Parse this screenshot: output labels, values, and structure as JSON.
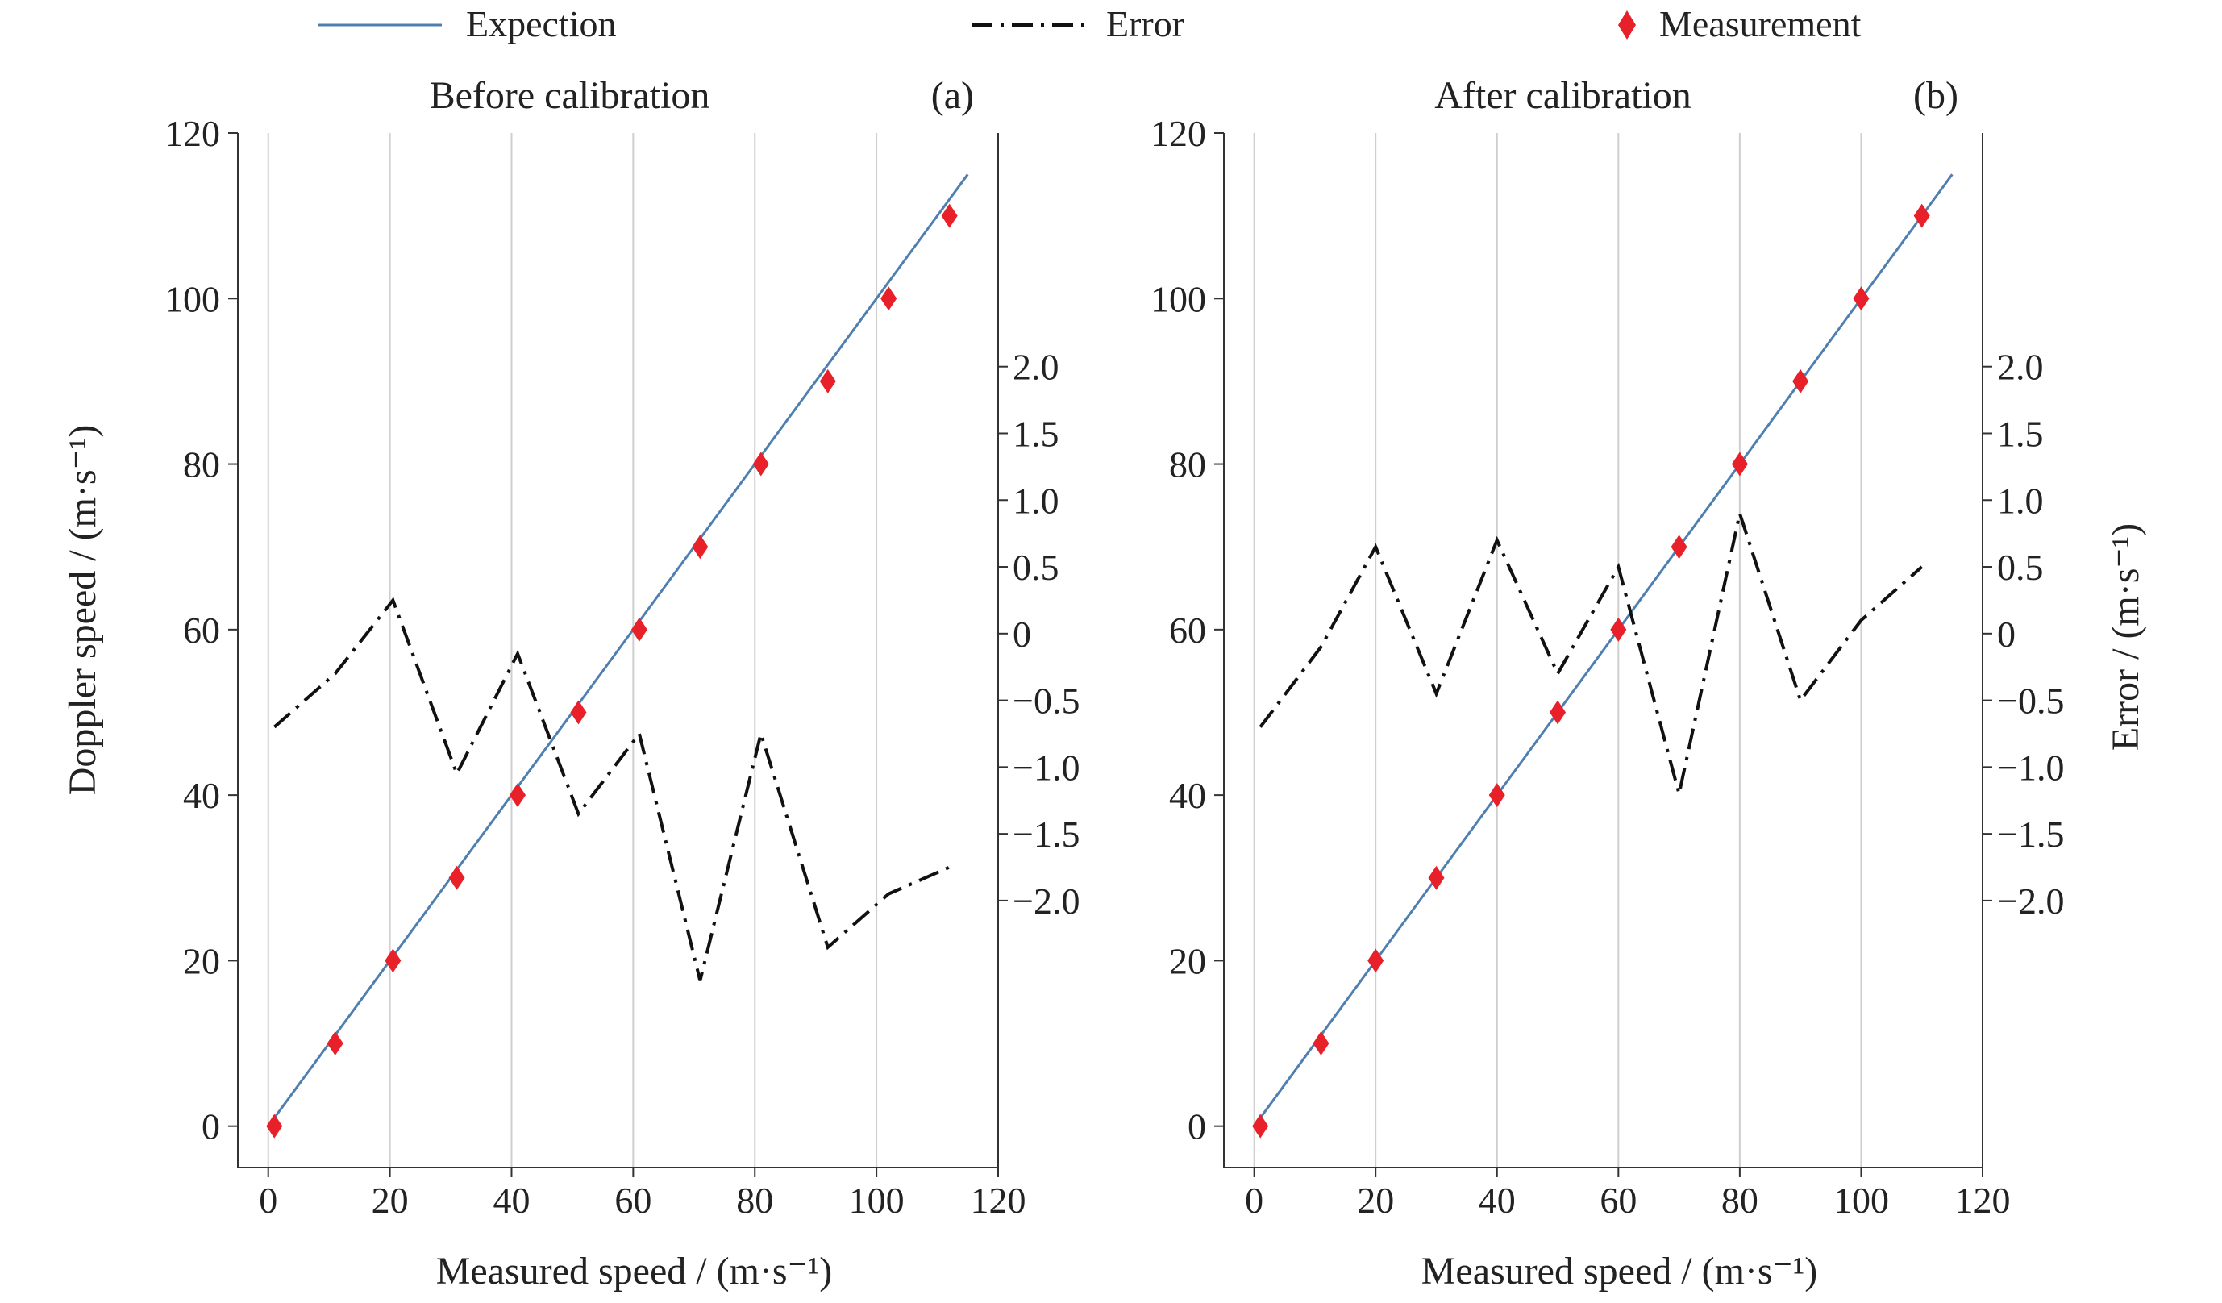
{
  "legend": {
    "expectation_label": "Expection",
    "error_label": "Error",
    "measurement_label": "Measurement"
  },
  "colors": {
    "expectation": "#4f7fb0",
    "error": "#111111",
    "measurement": "#e8202a",
    "grid": "#cfcfcf",
    "axis": "#333333"
  },
  "chart_data": [
    {
      "type": "line",
      "panel_label": "(a)",
      "title": "Before calibration",
      "xlabel": "Measured speed / (m·s⁻¹)",
      "ylabel": "Doppler speed / (m·s⁻¹)",
      "y2label": "",
      "xlim": [
        -5,
        120
      ],
      "ylim": [
        -5,
        120
      ],
      "y2lim": [
        -4.0,
        3.75
      ],
      "xticks": [
        0,
        20,
        40,
        60,
        80,
        100,
        120
      ],
      "yticks": [
        0,
        20,
        40,
        60,
        80,
        100,
        120
      ],
      "y2ticks": [
        -2.0,
        -1.5,
        -1.0,
        -0.5,
        0,
        0.5,
        1.0,
        1.5,
        2.0
      ],
      "grid": true,
      "legend_position": "top",
      "series": [
        {
          "name": "Expection",
          "kind": "line",
          "axis": "left",
          "x": [
            0,
            115
          ],
          "y": [
            0,
            115
          ]
        },
        {
          "name": "Measurement",
          "kind": "scatter",
          "axis": "left",
          "x": [
            1,
            11,
            20.5,
            31,
            41,
            51,
            61,
            71,
            81,
            92,
            102,
            112
          ],
          "y": [
            0,
            10,
            20,
            30,
            40,
            50,
            60,
            70,
            80,
            90,
            100,
            110
          ]
        },
        {
          "name": "Error",
          "kind": "line",
          "axis": "right",
          "x": [
            1,
            11,
            20.5,
            31,
            41,
            51,
            61,
            71,
            81,
            92,
            102,
            112
          ],
          "y": [
            -0.7,
            -0.3,
            0.25,
            -1.05,
            -0.15,
            -1.35,
            -0.75,
            -2.6,
            -0.75,
            -2.35,
            -1.95,
            -1.75
          ]
        }
      ]
    },
    {
      "type": "line",
      "panel_label": "(b)",
      "title": "After calibration",
      "xlabel": "Measured speed / (m·s⁻¹)",
      "ylabel": "",
      "y2label": "Error / (m·s⁻¹)",
      "xlim": [
        -5,
        120
      ],
      "ylim": [
        -5,
        120
      ],
      "y2lim": [
        -4.0,
        3.75
      ],
      "xticks": [
        0,
        20,
        40,
        60,
        80,
        100,
        120
      ],
      "yticks": [
        0,
        20,
        40,
        60,
        80,
        100,
        120
      ],
      "y2ticks": [
        -2.0,
        -1.5,
        -1.0,
        -0.5,
        0,
        0.5,
        1.0,
        1.5,
        2.0
      ],
      "grid": true,
      "legend_position": "top",
      "series": [
        {
          "name": "Expection",
          "kind": "line",
          "axis": "left",
          "x": [
            0,
            115
          ],
          "y": [
            0,
            115
          ]
        },
        {
          "name": "Measurement",
          "kind": "scatter",
          "axis": "left",
          "x": [
            1,
            11,
            20,
            30,
            40,
            50,
            60,
            70,
            80,
            90,
            100,
            110
          ],
          "y": [
            0,
            10,
            20,
            30,
            40,
            50,
            60,
            70,
            80,
            90,
            100,
            110
          ]
        },
        {
          "name": "Error",
          "kind": "line",
          "axis": "right",
          "x": [
            1,
            11,
            20,
            30,
            40,
            50,
            60,
            70,
            80,
            90,
            100,
            110
          ],
          "y": [
            -0.7,
            -0.1,
            0.65,
            -0.45,
            0.7,
            -0.3,
            0.5,
            -1.2,
            0.9,
            -0.5,
            0.1,
            0.5
          ]
        }
      ]
    }
  ]
}
